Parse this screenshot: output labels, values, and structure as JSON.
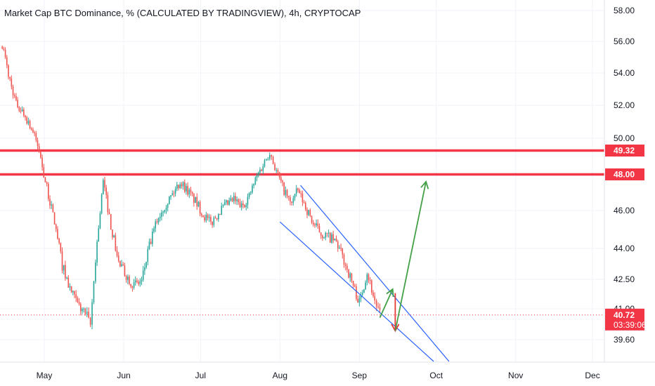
{
  "chart_data": {
    "type": "candlestick",
    "title": "Market Cap BTC Dominance, % (CALCULATED BY TRADINGVIEW), 4h, CRYPTOCAP",
    "ylim": [
      38.4,
      58.6
    ],
    "y_scale": "nonlinear",
    "y_ticks": [
      "58.00",
      "56.00",
      "54.00",
      "52.00",
      "50.00",
      "46.00",
      "44.00",
      "42.50",
      "41.00",
      "39.60"
    ],
    "x_labels": [
      "May",
      "Jun",
      "Jul",
      "Aug",
      "Sep",
      "Oct",
      "Nov",
      "Dec"
    ],
    "grid": true,
    "price_series": {
      "date": [
        "2021-04-14",
        "2021-04-17",
        "2021-04-20",
        "2021-04-23",
        "2021-04-26",
        "2021-04-29",
        "2021-05-02",
        "2021-05-05",
        "2021-05-08",
        "2021-05-11",
        "2021-05-14",
        "2021-05-17",
        "2021-05-19",
        "2021-05-21",
        "2021-05-24",
        "2021-05-27",
        "2021-05-30",
        "2021-06-02",
        "2021-06-05",
        "2021-06-08",
        "2021-06-11",
        "2021-06-14",
        "2021-06-17",
        "2021-06-20",
        "2021-06-23",
        "2021-06-26",
        "2021-06-29",
        "2021-07-02",
        "2021-07-05",
        "2021-07-08",
        "2021-07-11",
        "2021-07-14",
        "2021-07-17",
        "2021-07-20",
        "2021-07-23",
        "2021-07-26",
        "2021-07-28",
        "2021-07-30",
        "2021-08-02",
        "2021-08-05",
        "2021-08-08",
        "2021-08-11",
        "2021-08-14",
        "2021-08-17",
        "2021-08-20",
        "2021-08-23",
        "2021-08-26",
        "2021-08-29",
        "2021-09-01",
        "2021-09-04",
        "2021-09-07",
        "2021-09-09"
      ],
      "value": [
        56.3,
        53.9,
        52.1,
        51.5,
        50.6,
        49.3,
        47.2,
        45.4,
        43.2,
        42.0,
        41.2,
        40.8,
        40.2,
        43.5,
        47.6,
        45.2,
        43.3,
        42.7,
        42.2,
        42.4,
        44.1,
        45.5,
        46.3,
        46.9,
        47.6,
        47.1,
        46.5,
        45.8,
        45.3,
        45.9,
        46.3,
        46.6,
        46.2,
        46.8,
        47.9,
        48.7,
        49.3,
        48.4,
        47.3,
        46.4,
        47.1,
        46.2,
        45.3,
        44.8,
        44.6,
        44.3,
        43.4,
        42.4,
        41.3,
        42.9,
        41.4,
        40.7
      ]
    },
    "horizontal_levels": [
      {
        "value": 49.32,
        "label": "49.32",
        "color": "#f23645"
      },
      {
        "value": 48.0,
        "label": "48.00",
        "color": "#f23645"
      }
    ],
    "last_price": {
      "value": 40.72,
      "label": "40.72",
      "countdown": "03:39:06",
      "color": "#f23645"
    },
    "channel": {
      "color": "#2962ff",
      "upper": [
        [
          "2021-08-09",
          47.4
        ],
        [
          "2021-10-06",
          38.4
        ]
      ],
      "lower": [
        [
          "2021-08-01",
          45.4
        ],
        [
          "2021-09-30",
          38.4
        ]
      ]
    },
    "arrows": [
      {
        "color": "#43a047",
        "points": [
          [
            "2021-09-09",
            40.6
          ],
          [
            "2021-09-14",
            42.0
          ]
        ]
      },
      {
        "color": "#e53935",
        "points": [
          [
            "2021-09-15",
            41.8
          ],
          [
            "2021-09-15",
            40.0
          ]
        ]
      },
      {
        "color": "#43a047",
        "points": [
          [
            "2021-09-15",
            40.0
          ],
          [
            "2021-09-27",
            47.6
          ]
        ]
      }
    ],
    "colors": {
      "up": "#26a69a",
      "down": "#ef5350",
      "level": "#f23645",
      "channel": "#2962ff",
      "arrow_green": "#43a047",
      "arrow_red": "#e53935"
    }
  }
}
